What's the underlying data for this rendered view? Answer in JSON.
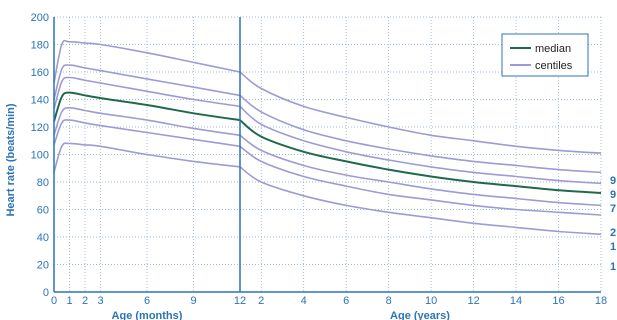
{
  "chart_data": {
    "type": "line",
    "ylabel": "Heart rate (beats/min)",
    "xlabel_left": "Age (months)",
    "xlabel_right": "Age (years)",
    "ylim": [
      0,
      200
    ],
    "yticks": [
      "0",
      "20",
      "40",
      "60",
      "80",
      "100",
      "120",
      "140",
      "160",
      "180",
      "200"
    ],
    "xticks_months": [
      "0",
      "1",
      "2",
      "3",
      "6",
      "9",
      "12"
    ],
    "xticks_years": [
      "2",
      "4",
      "6",
      "8",
      "10",
      "12",
      "14",
      "16",
      "18"
    ],
    "legend": {
      "median": "median",
      "centiles": "centiles"
    },
    "right_labels": [
      "9",
      "9",
      "7",
      "2",
      "1",
      "1"
    ],
    "colors": {
      "axis": "#2b74b8",
      "median": "#1f6a4a",
      "centiles": "#9d9bd6",
      "grid": "#7fa6d1"
    },
    "grid": true,
    "legend_position": "top-right",
    "series_months": [
      {
        "role": "centile",
        "x": [
          0,
          0.5,
          1,
          2,
          3,
          6,
          9,
          12
        ],
        "y": [
          152,
          180,
          182,
          181,
          180,
          174,
          167,
          160
        ]
      },
      {
        "role": "centile",
        "x": [
          0,
          0.5,
          1,
          2,
          3,
          6,
          9,
          12
        ],
        "y": [
          140,
          162,
          165,
          163,
          161,
          155,
          149,
          143
        ]
      },
      {
        "role": "centile",
        "x": [
          0,
          0.5,
          1,
          2,
          3,
          6,
          9,
          12
        ],
        "y": [
          133,
          153,
          156,
          154,
          152,
          146,
          140,
          135
        ]
      },
      {
        "role": "median",
        "x": [
          0,
          0.5,
          1,
          2,
          3,
          6,
          9,
          12
        ],
        "y": [
          124,
          142,
          145,
          143,
          141,
          136,
          130,
          125
        ]
      },
      {
        "role": "centile",
        "x": [
          0,
          0.5,
          1,
          2,
          3,
          6,
          9,
          12
        ],
        "y": [
          114,
          131,
          134,
          132,
          130,
          125,
          119,
          114
        ]
      },
      {
        "role": "centile",
        "x": [
          0,
          0.5,
          1,
          2,
          3,
          6,
          9,
          12
        ],
        "y": [
          107,
          123,
          125,
          123,
          121,
          116,
          111,
          106
        ]
      },
      {
        "role": "centile",
        "x": [
          0,
          0.5,
          1,
          2,
          3,
          6,
          9,
          12
        ],
        "y": [
          87,
          106,
          108,
          107,
          106,
          100,
          95,
          91
        ]
      }
    ],
    "series_years": [
      {
        "role": "centile",
        "x": [
          1,
          2,
          4,
          6,
          8,
          10,
          12,
          14,
          16,
          18
        ],
        "y": [
          160,
          148,
          135,
          127,
          120,
          114,
          110,
          106,
          103,
          101
        ]
      },
      {
        "role": "centile",
        "x": [
          1,
          2,
          4,
          6,
          8,
          10,
          12,
          14,
          16,
          18
        ],
        "y": [
          143,
          131,
          118,
          110,
          104,
          99,
          95,
          92,
          89,
          87
        ]
      },
      {
        "role": "centile",
        "x": [
          1,
          2,
          4,
          6,
          8,
          10,
          12,
          14,
          16,
          18
        ],
        "y": [
          135,
          122,
          110,
          102,
          96,
          91,
          87,
          84,
          81,
          79
        ]
      },
      {
        "role": "median",
        "x": [
          1,
          2,
          4,
          6,
          8,
          10,
          12,
          14,
          16,
          18
        ],
        "y": [
          125,
          113,
          102,
          95,
          89,
          84,
          80,
          77,
          74,
          72
        ]
      },
      {
        "role": "centile",
        "x": [
          1,
          2,
          4,
          6,
          8,
          10,
          12,
          14,
          16,
          18
        ],
        "y": [
          114,
          103,
          92,
          85,
          80,
          75,
          71,
          68,
          65,
          63
        ]
      },
      {
        "role": "centile",
        "x": [
          1,
          2,
          4,
          6,
          8,
          10,
          12,
          14,
          16,
          18
        ],
        "y": [
          106,
          95,
          84,
          77,
          71,
          67,
          63,
          60,
          58,
          56
        ]
      },
      {
        "role": "centile",
        "x": [
          1,
          2,
          4,
          6,
          8,
          10,
          12,
          14,
          16,
          18
        ],
        "y": [
          91,
          80,
          70,
          63,
          58,
          54,
          50,
          47,
          44,
          42
        ]
      }
    ]
  }
}
